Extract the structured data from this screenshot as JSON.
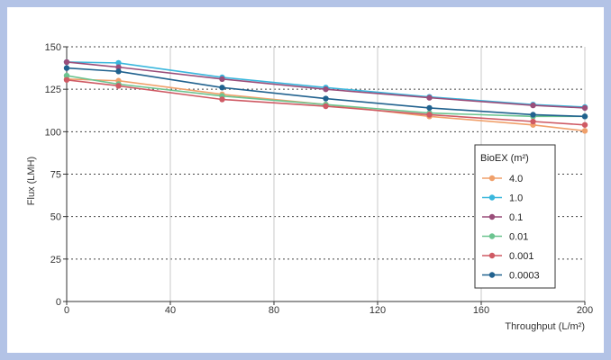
{
  "chart_data": {
    "type": "line",
    "title": "",
    "xlabel": "Throughput (L/m²)",
    "ylabel": "Flux (LMH)",
    "xlim": [
      0,
      200
    ],
    "ylim": [
      0,
      150
    ],
    "xticks": [
      0,
      40,
      80,
      120,
      160,
      200
    ],
    "yticks": [
      0,
      25,
      50,
      75,
      100,
      125,
      150
    ],
    "grid": {
      "x": "solid vertical",
      "y": "dotted horizontal"
    },
    "legend": {
      "title": "BioEX (m²)",
      "position": "right"
    },
    "series": [
      {
        "name": "4.0",
        "color": "#f0a06b",
        "x": [
          0,
          20,
          60,
          100,
          140,
          180,
          200
        ],
        "y": [
          131,
          130,
          122,
          116,
          109,
          104,
          100.5
        ]
      },
      {
        "name": "1.0",
        "color": "#3ab7dd",
        "x": [
          0,
          20,
          60,
          100,
          140,
          180,
          200
        ],
        "y": [
          141,
          140.5,
          132,
          126,
          120.5,
          116,
          114.5
        ]
      },
      {
        "name": "0.1",
        "color": "#9a4e7a",
        "x": [
          0,
          20,
          60,
          100,
          140,
          180,
          200
        ],
        "y": [
          141,
          138,
          131,
          125,
          120,
          115.5,
          114
        ]
      },
      {
        "name": "0.01",
        "color": "#6cc490",
        "x": [
          0,
          20,
          60,
          100,
          140,
          180,
          200
        ],
        "y": [
          133,
          128,
          121,
          116,
          111,
          109,
          109
        ]
      },
      {
        "name": "0.001",
        "color": "#cf5a64",
        "x": [
          0,
          20,
          60,
          100,
          140,
          180,
          200
        ],
        "y": [
          130.5,
          127,
          119,
          115,
          110,
          106,
          104
        ]
      },
      {
        "name": "0.0003",
        "color": "#21628f",
        "x": [
          0,
          20,
          60,
          100,
          140,
          180,
          200
        ],
        "y": [
          137.5,
          135.5,
          126,
          119.5,
          114,
          110,
          109
        ]
      }
    ]
  }
}
